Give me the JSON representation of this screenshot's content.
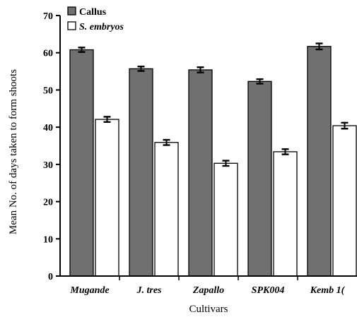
{
  "chart_data": {
    "type": "bar",
    "title": "",
    "xlabel": "Cultivars",
    "ylabel": "Mean No. of days taken to form shoots",
    "ylim": [
      0,
      70
    ],
    "yticks": [
      0,
      10,
      20,
      30,
      40,
      50,
      60,
      70
    ],
    "grid": false,
    "legend_position": "top-left",
    "categories": [
      "Mugande",
      "J. tres",
      "Zapallo",
      "SPK004",
      "Kemb 1"
    ],
    "category_labels_shown": [
      "Mugande",
      "J. tres",
      "Zapallo",
      "SPK004",
      "Kemb 1("
    ],
    "series": [
      {
        "name": "Callus",
        "values": [
          60.8,
          55.7,
          55.4,
          52.3,
          61.7
        ],
        "errors": [
          0.6,
          0.6,
          0.7,
          0.6,
          0.8
        ],
        "color": "#707070",
        "italic": false
      },
      {
        "name": "S. embryos",
        "values": [
          42.1,
          35.9,
          30.3,
          33.4,
          40.4
        ],
        "errors": [
          0.7,
          0.7,
          0.7,
          0.7,
          0.8
        ],
        "color": "#ffffff",
        "italic": true
      }
    ]
  }
}
